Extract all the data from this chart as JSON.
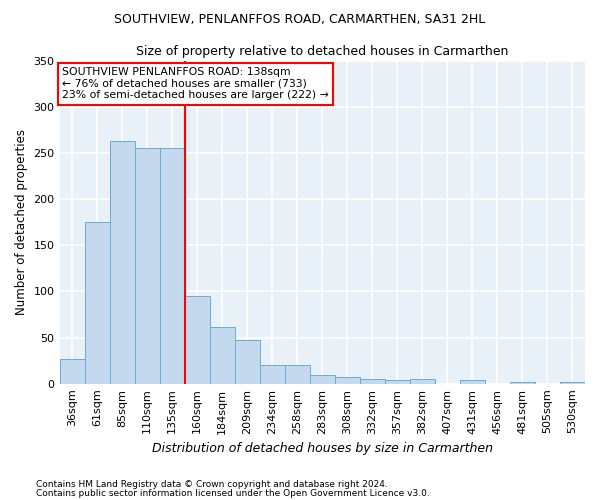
{
  "title1": "SOUTHVIEW, PENLANFFOS ROAD, CARMARTHEN, SA31 2HL",
  "title2": "Size of property relative to detached houses in Carmarthen",
  "xlabel": "Distribution of detached houses by size in Carmarthen",
  "ylabel": "Number of detached properties",
  "categories": [
    "36sqm",
    "61sqm",
    "85sqm",
    "110sqm",
    "135sqm",
    "160sqm",
    "184sqm",
    "209sqm",
    "234sqm",
    "258sqm",
    "283sqm",
    "308sqm",
    "332sqm",
    "357sqm",
    "382sqm",
    "407sqm",
    "431sqm",
    "456sqm",
    "481sqm",
    "505sqm",
    "530sqm"
  ],
  "values": [
    27,
    175,
    263,
    255,
    255,
    95,
    62,
    47,
    20,
    20,
    10,
    7,
    5,
    4,
    5,
    0,
    4,
    0,
    2,
    0,
    2
  ],
  "bar_color": "#c5d9ee",
  "bar_edge_color": "#6aacd4",
  "bar_edge_width": 0.7,
  "red_line_x": 4.5,
  "annotation_title": "SOUTHVIEW PENLANFFOS ROAD: 138sqm",
  "annotation_line1": "← 76% of detached houses are smaller (733)",
  "annotation_line2": "23% of semi-detached houses are larger (222) →",
  "ylim": [
    0,
    350
  ],
  "background_color": "#ffffff",
  "plot_bg_color": "#e8f0f8",
  "grid_color": "#ffffff",
  "footnote1": "Contains HM Land Registry data © Crown copyright and database right 2024.",
  "footnote2": "Contains public sector information licensed under the Open Government Licence v3.0."
}
